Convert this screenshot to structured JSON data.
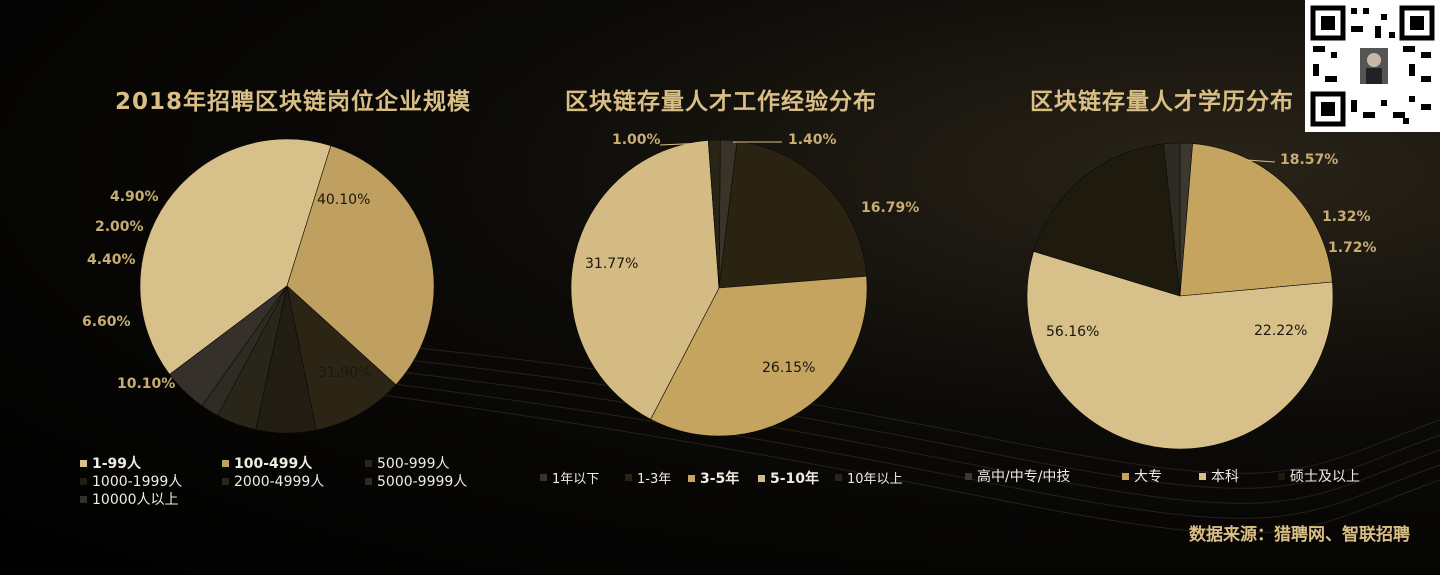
{
  "chart_data": [
    {
      "type": "pie",
      "title": "2018年招聘区块链岗位企业规模",
      "slices": [
        {
          "label": "1-99人",
          "value": 40.1,
          "display": "40.10%",
          "color": "#d8c08a"
        },
        {
          "label": "100-499人",
          "value": 31.9,
          "display": "31.90%",
          "color": "#c0a060"
        },
        {
          "label": "500-999人",
          "value": 10.1,
          "display": "10.10%",
          "color": "#2c2516"
        },
        {
          "label": "1000-1999人",
          "value": 6.6,
          "display": "6.60%",
          "color": "#221d12"
        },
        {
          "label": "2000-4999人",
          "value": 4.4,
          "display": "4.40%",
          "color": "#2a2519"
        },
        {
          "label": "5000-9999人",
          "value": 2.0,
          "display": "2.00%",
          "color": "#302b22"
        },
        {
          "label": "10000人以上",
          "value": 4.9,
          "display": "4.90%",
          "color": "#35312a"
        }
      ]
    },
    {
      "type": "pie",
      "title": "区块链存量人才工作经验分布",
      "slices": [
        {
          "label": "1年以下",
          "value": 1.4,
          "display": "1.40%",
          "color": "#3a3428"
        },
        {
          "label": "1-3年",
          "value": 16.79,
          "display": "16.79%",
          "color": "#2a2312"
        },
        {
          "label": "3-5年",
          "value": 26.15,
          "display": "26.15%",
          "color": "#c4a45f"
        },
        {
          "label": "5-10年",
          "value": 31.77,
          "display": "31.77%",
          "color": "#d4bb83"
        },
        {
          "label": "10年以上",
          "value": 1.0,
          "display": "1.00%",
          "color": "#2a2416"
        }
      ]
    },
    {
      "type": "pie",
      "title": "区块链存量人才学历分布",
      "slices": [
        {
          "label": "高中/中专/中技",
          "value": 1.32,
          "display": "1.32%",
          "color": "#3c3830"
        },
        {
          "label": "大专",
          "value": 22.22,
          "display": "22.22%",
          "color": "#c4a45f"
        },
        {
          "label": "本科",
          "value": 56.16,
          "display": "56.16%",
          "color": "#d8c08a"
        },
        {
          "label": "硕士及以上",
          "value": 18.57,
          "display": "18.57%",
          "color": "#1e1a0d"
        },
        {
          "label": "",
          "value": 1.72,
          "display": "1.72%",
          "color": "#2e2a22"
        }
      ]
    }
  ],
  "source": "数据来源：猎聘网、智联招聘",
  "qr_icon": "qr-code-icon"
}
